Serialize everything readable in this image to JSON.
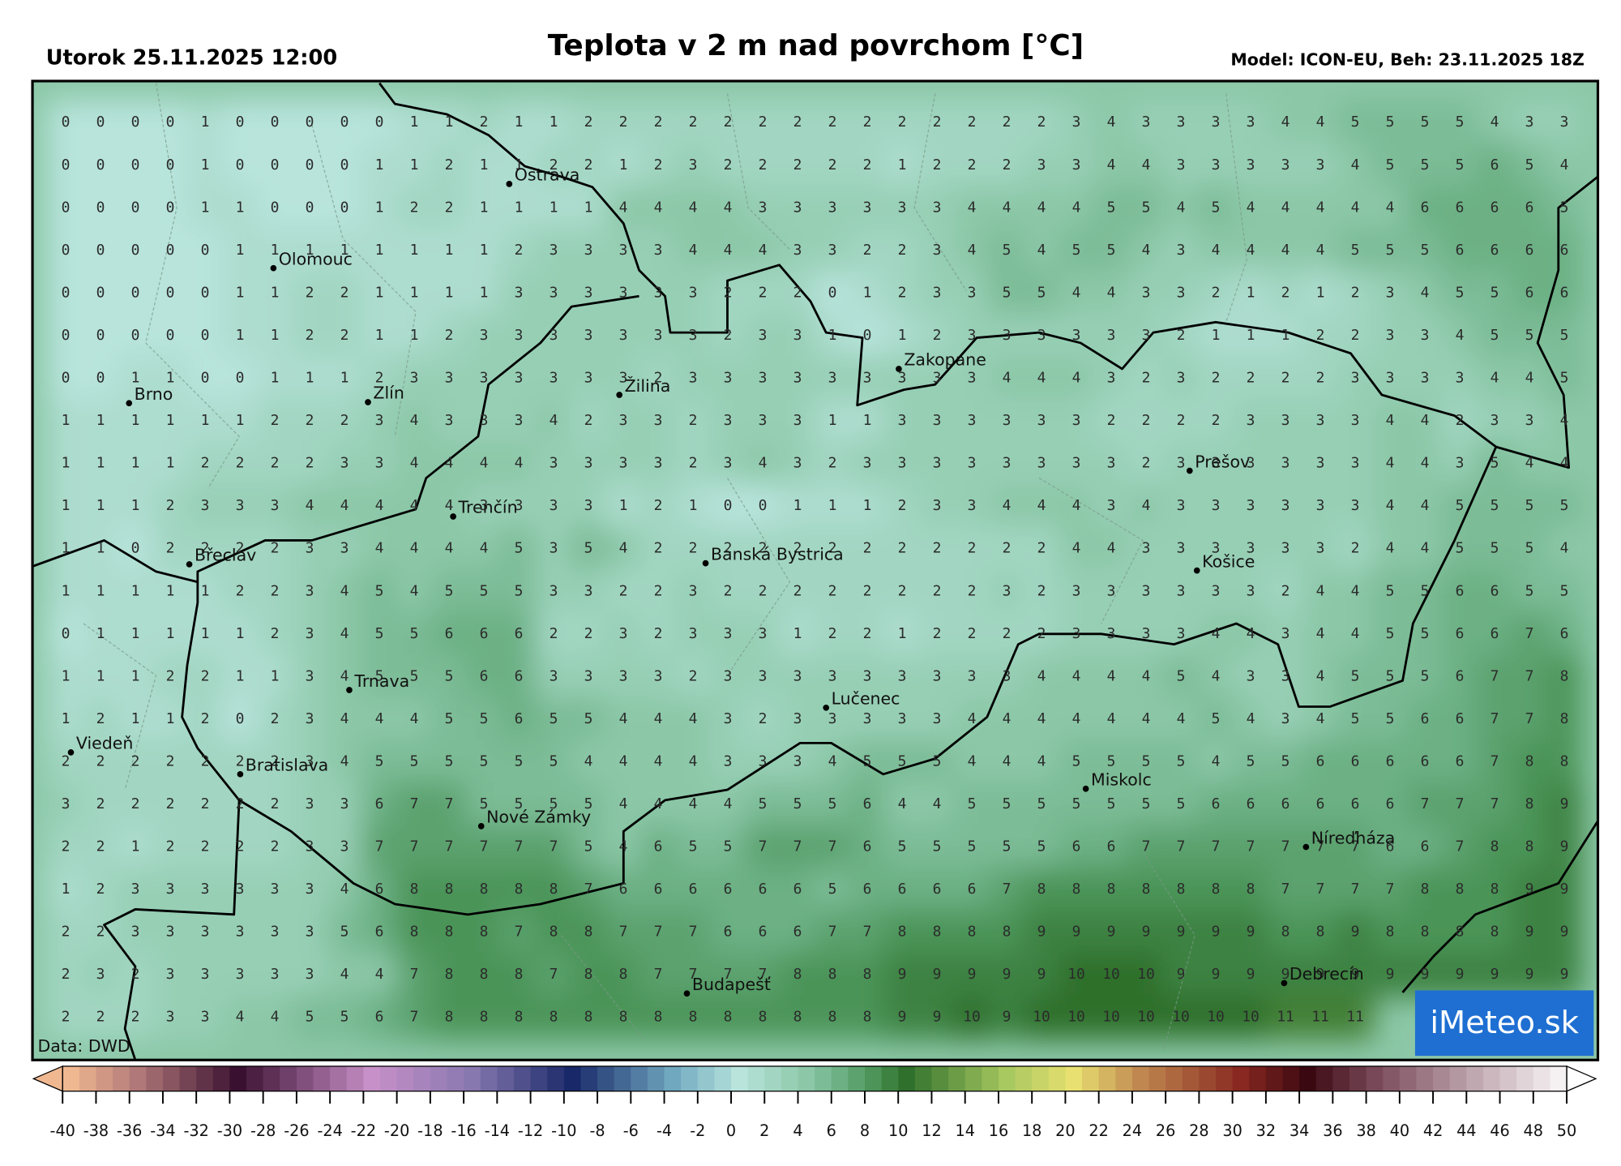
{
  "header": {
    "left": "Utorok 25.11.2025 12:00",
    "title": "Teplota v 2 m nad povrchom [°C]",
    "right": "Model: ICON-EU, Beh: 23.11.2025 18Z"
  },
  "source": "Data: DWD",
  "logo": "iMeteo.sk",
  "cities": [
    "Ostrava",
    "Olomouc",
    "Brno",
    "Zlín",
    "Žilina",
    "Zakopane",
    "Trenčín",
    "Prešov",
    "Košice",
    "Banská Bystrica",
    "Břeclav",
    "Trnava",
    "Lučenec",
    "Viedeň",
    "Bratislava",
    "Miskolc",
    "Nové Zámky",
    "Níreďháza",
    "Budapešť",
    "Debrecín"
  ],
  "grid": {
    "rows": [
      [
        0,
        0,
        0,
        0,
        1,
        0,
        0,
        0,
        0,
        0,
        1,
        1,
        2,
        1,
        1,
        2,
        2,
        2,
        2,
        2,
        2,
        2,
        2,
        2,
        2,
        2,
        2,
        2,
        2,
        3,
        4,
        3,
        3,
        3,
        3,
        4,
        4,
        5,
        5,
        5,
        5,
        4,
        3,
        3
      ],
      [
        0,
        0,
        0,
        0,
        1,
        0,
        0,
        0,
        0,
        1,
        1,
        2,
        1,
        1,
        2,
        2,
        1,
        2,
        3,
        2,
        2,
        2,
        2,
        2,
        1,
        2,
        2,
        2,
        3,
        3,
        4,
        4,
        3,
        3,
        3,
        3,
        3,
        4,
        5,
        5,
        5,
        6,
        5,
        4
      ],
      [
        0,
        0,
        0,
        0,
        1,
        1,
        0,
        0,
        0,
        1,
        2,
        2,
        1,
        1,
        1,
        1,
        4,
        4,
        4,
        4,
        3,
        3,
        3,
        3,
        3,
        3,
        4,
        4,
        4,
        4,
        5,
        5,
        4,
        5,
        4,
        4,
        4,
        4,
        4,
        6,
        6,
        6,
        6,
        5
      ],
      [
        0,
        0,
        0,
        0,
        0,
        1,
        1,
        1,
        1,
        1,
        1,
        1,
        1,
        2,
        3,
        3,
        3,
        3,
        4,
        4,
        4,
        3,
        3,
        2,
        2,
        3,
        4,
        5,
        4,
        5,
        5,
        4,
        3,
        4,
        4,
        4,
        4,
        5,
        5,
        5,
        6,
        6,
        6,
        6
      ],
      [
        0,
        0,
        0,
        0,
        0,
        1,
        1,
        2,
        2,
        1,
        1,
        1,
        1,
        3,
        3,
        3,
        3,
        3,
        3,
        2,
        2,
        2,
        0,
        1,
        2,
        3,
        3,
        5,
        5,
        4,
        4,
        3,
        3,
        2,
        1,
        2,
        1,
        2,
        3,
        4,
        5,
        5,
        6,
        6
      ],
      [
        0,
        0,
        0,
        0,
        0,
        1,
        1,
        2,
        2,
        1,
        1,
        2,
        3,
        3,
        3,
        3,
        3,
        3,
        3,
        2,
        3,
        3,
        1,
        0,
        1,
        2,
        3,
        3,
        3,
        3,
        3,
        3,
        2,
        1,
        1,
        1,
        2,
        2,
        3,
        3,
        4,
        5,
        5,
        5
      ],
      [
        0,
        0,
        1,
        1,
        0,
        0,
        1,
        1,
        1,
        2,
        3,
        3,
        3,
        3,
        3,
        3,
        3,
        2,
        3,
        3,
        3,
        3,
        3,
        3,
        3,
        3,
        3,
        4,
        4,
        4,
        3,
        2,
        3,
        2,
        2,
        2,
        2,
        3,
        3,
        3,
        3,
        4,
        4,
        5
      ],
      [
        1,
        1,
        1,
        1,
        1,
        1,
        2,
        2,
        2,
        3,
        4,
        3,
        3,
        3,
        4,
        2,
        3,
        3,
        2,
        3,
        3,
        3,
        1,
        1,
        3,
        3,
        3,
        3,
        3,
        3,
        2,
        2,
        2,
        2,
        3,
        3,
        3,
        3,
        4,
        4,
        2,
        3,
        3,
        4
      ],
      [
        1,
        1,
        1,
        1,
        2,
        2,
        2,
        2,
        3,
        3,
        4,
        4,
        4,
        4,
        3,
        3,
        3,
        3,
        2,
        3,
        4,
        3,
        2,
        3,
        3,
        3,
        3,
        3,
        3,
        3,
        3,
        2,
        3,
        3,
        3,
        3,
        3,
        3,
        4,
        4,
        3,
        5,
        4,
        4
      ],
      [
        1,
        1,
        1,
        2,
        3,
        3,
        3,
        4,
        4,
        4,
        4,
        4,
        3,
        3,
        3,
        3,
        1,
        2,
        1,
        0,
        0,
        1,
        1,
        1,
        2,
        3,
        3,
        4,
        4,
        4,
        3,
        4,
        3,
        3,
        3,
        3,
        3,
        3,
        4,
        4,
        5,
        5,
        5,
        5
      ],
      [
        1,
        1,
        0,
        2,
        2,
        2,
        2,
        3,
        3,
        4,
        4,
        4,
        4,
        5,
        3,
        5,
        4,
        2,
        2,
        2,
        2,
        2,
        2,
        2,
        2,
        2,
        2,
        2,
        2,
        4,
        4,
        3,
        3,
        3,
        3,
        3,
        3,
        2,
        4,
        4,
        5,
        5,
        5,
        4
      ],
      [
        1,
        1,
        1,
        1,
        1,
        2,
        2,
        3,
        4,
        5,
        4,
        5,
        5,
        5,
        3,
        3,
        2,
        2,
        3,
        2,
        2,
        2,
        2,
        2,
        2,
        2,
        2,
        3,
        2,
        3,
        3,
        3,
        3,
        3,
        3,
        2,
        4,
        4,
        5,
        5,
        6,
        6,
        5,
        5
      ],
      [
        0,
        1,
        1,
        1,
        1,
        1,
        2,
        3,
        4,
        5,
        5,
        6,
        6,
        6,
        2,
        2,
        3,
        2,
        3,
        3,
        3,
        1,
        2,
        2,
        1,
        2,
        2,
        2,
        2,
        3,
        3,
        3,
        3,
        4,
        4,
        3,
        4,
        4,
        5,
        5,
        6,
        6,
        7,
        6
      ],
      [
        1,
        1,
        1,
        2,
        2,
        1,
        1,
        3,
        4,
        5,
        5,
        5,
        6,
        6,
        3,
        3,
        3,
        3,
        2,
        3,
        3,
        3,
        3,
        3,
        3,
        3,
        3,
        3,
        4,
        4,
        4,
        4,
        5,
        4,
        3,
        3,
        4,
        5,
        5,
        5,
        6,
        7,
        7,
        8
      ],
      [
        1,
        2,
        1,
        1,
        2,
        0,
        2,
        3,
        4,
        4,
        4,
        5,
        5,
        6,
        5,
        5,
        4,
        4,
        4,
        3,
        2,
        3,
        3,
        3,
        3,
        3,
        4,
        4,
        4,
        4,
        4,
        4,
        4,
        5,
        4,
        3,
        4,
        5,
        5,
        6,
        6,
        7,
        7,
        8
      ],
      [
        2,
        2,
        2,
        2,
        2,
        2,
        2,
        3,
        4,
        5,
        5,
        5,
        5,
        5,
        5,
        4,
        4,
        4,
        4,
        3,
        3,
        3,
        4,
        5,
        5,
        5,
        4,
        4,
        4,
        5,
        5,
        5,
        5,
        4,
        5,
        5,
        6,
        6,
        6,
        6,
        6,
        7,
        8,
        8
      ],
      [
        3,
        2,
        2,
        2,
        2,
        2,
        2,
        3,
        3,
        6,
        7,
        7,
        5,
        5,
        5,
        5,
        4,
        4,
        4,
        4,
        5,
        5,
        5,
        6,
        4,
        4,
        5,
        5,
        5,
        5,
        5,
        5,
        5,
        6,
        6,
        6,
        6,
        6,
        6,
        7,
        7,
        7,
        8,
        9
      ],
      [
        2,
        2,
        1,
        2,
        2,
        2,
        2,
        3,
        3,
        7,
        7,
        7,
        7,
        7,
        7,
        5,
        4,
        6,
        5,
        5,
        7,
        7,
        7,
        6,
        5,
        5,
        5,
        5,
        5,
        6,
        6,
        7,
        7,
        7,
        7,
        7,
        7,
        7,
        6,
        6,
        7,
        8,
        8,
        9
      ],
      [
        1,
        2,
        3,
        3,
        3,
        3,
        3,
        3,
        4,
        6,
        8,
        8,
        8,
        8,
        8,
        7,
        6,
        6,
        6,
        6,
        6,
        6,
        5,
        6,
        6,
        6,
        6,
        7,
        8,
        8,
        8,
        8,
        8,
        8,
        8,
        7,
        7,
        7,
        7,
        8,
        8,
        8,
        9,
        9
      ],
      [
        2,
        2,
        3,
        3,
        3,
        3,
        3,
        3,
        5,
        6,
        8,
        8,
        8,
        7,
        8,
        8,
        7,
        7,
        7,
        6,
        6,
        6,
        7,
        7,
        8,
        8,
        8,
        8,
        9,
        9,
        9,
        9,
        9,
        9,
        9,
        8,
        8,
        9,
        8,
        8,
        8,
        8,
        9,
        9
      ],
      [
        2,
        3,
        2,
        3,
        3,
        3,
        3,
        3,
        4,
        4,
        7,
        8,
        8,
        8,
        7,
        8,
        8,
        7,
        7,
        7,
        7,
        8,
        8,
        8,
        9,
        9,
        9,
        9,
        9,
        10,
        10,
        10,
        9,
        9,
        9,
        9,
        9,
        9,
        9,
        9,
        9,
        9,
        9,
        9
      ],
      [
        2,
        2,
        2,
        3,
        3,
        4,
        4,
        5,
        5,
        6,
        7,
        8,
        8,
        8,
        8,
        8,
        8,
        8,
        8,
        8,
        8,
        8,
        8,
        8,
        9,
        9,
        10,
        9,
        10,
        10,
        10,
        10,
        10,
        10,
        10,
        11,
        11,
        11,
        null,
        null,
        null,
        null,
        null,
        null
      ]
    ]
  },
  "colorbar": {
    "ticks": [
      -40,
      -38,
      -36,
      -34,
      -32,
      -30,
      -28,
      -26,
      -24,
      -22,
      -20,
      -18,
      -16,
      -14,
      -12,
      -10,
      -8,
      -6,
      -4,
      -2,
      0,
      2,
      4,
      6,
      8,
      10,
      12,
      14,
      16,
      18,
      20,
      22,
      24,
      26,
      28,
      30,
      32,
      34,
      36,
      38,
      40,
      42,
      44,
      46,
      48,
      50
    ],
    "color_stops": [
      [
        -40,
        "#f0b890"
      ],
      [
        -36,
        "#b07878"
      ],
      [
        -30,
        "#3a1030"
      ],
      [
        -22,
        "#c890c8"
      ],
      [
        -16,
        "#8878b0"
      ],
      [
        -10,
        "#182868"
      ],
      [
        -4,
        "#70a8c0"
      ],
      [
        0,
        "#b8e4dc"
      ],
      [
        2,
        "#a2d6c2"
      ],
      [
        4,
        "#8cc8a8"
      ],
      [
        6,
        "#6cb084"
      ],
      [
        8,
        "#4c9458"
      ],
      [
        10,
        "#2f702c"
      ],
      [
        16,
        "#a8c860"
      ],
      [
        20,
        "#e8e070"
      ],
      [
        24,
        "#c08850"
      ],
      [
        30,
        "#882820"
      ],
      [
        34,
        "#3a0810"
      ],
      [
        38,
        "#784858"
      ],
      [
        44,
        "#c0a8b0"
      ],
      [
        50,
        "#ffffff"
      ]
    ]
  }
}
